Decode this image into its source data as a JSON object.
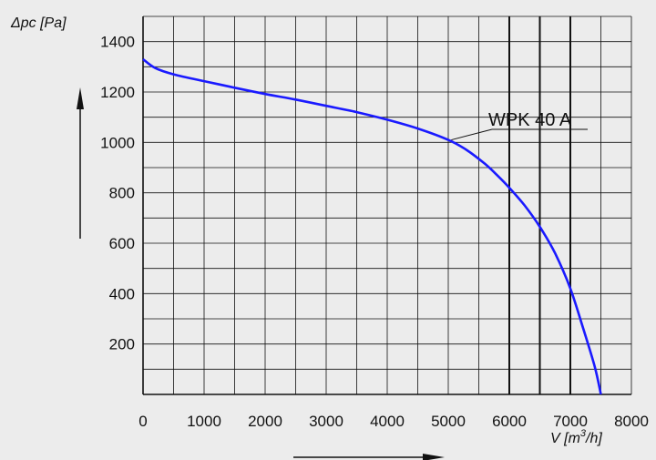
{
  "chart_data": {
    "type": "line",
    "title": "",
    "xlabel": "V [m³/h]",
    "ylabel": "Δpc [Pa]",
    "xlim": [
      0,
      8000
    ],
    "ylim": [
      0,
      1500
    ],
    "x_ticks": [
      "0",
      "1000",
      "2000",
      "3000",
      "4000",
      "5000",
      "6000",
      "7000",
      "8000"
    ],
    "y_ticks": [
      "200",
      "400",
      "600",
      "800",
      "1000",
      "1200",
      "1400"
    ],
    "grid": true,
    "emphasized_x_lines": [
      6000,
      6500,
      7000
    ],
    "series": [
      {
        "name": "WPK 40 A",
        "color": "#1a1aff",
        "x": [
          0,
          200,
          500,
          1000,
          1500,
          2000,
          2500,
          3000,
          3500,
          4000,
          4500,
          5000,
          5300,
          5600,
          5800,
          6000,
          6250,
          6500,
          6750,
          7000,
          7200,
          7400,
          7500
        ],
        "y": [
          1330,
          1295,
          1270,
          1243,
          1217,
          1192,
          1170,
          1145,
          1120,
          1090,
          1055,
          1010,
          970,
          915,
          870,
          820,
          750,
          665,
          560,
          420,
          270,
          110,
          0
        ]
      }
    ]
  }
}
